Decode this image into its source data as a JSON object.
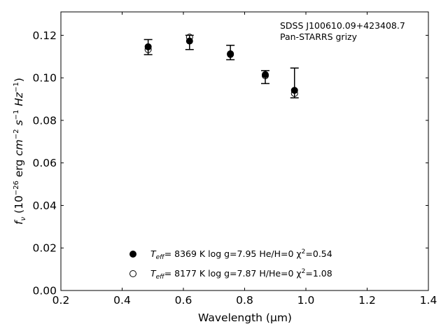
{
  "chart_data": {
    "type": "scatter",
    "xlabel": "Wavelength (μm)",
    "ylabel": "f_ν (10^-26 erg cm^-2 s^-1 Hz^-1)",
    "xlim": [
      0.2,
      1.4
    ],
    "ylim": [
      0.0,
      0.131
    ],
    "xticks": [
      0.2,
      0.4,
      0.6,
      0.8,
      1.0,
      1.2,
      1.4
    ],
    "xtick_labels": [
      "0.2",
      "0.4",
      "0.6",
      "0.8",
      "1.0",
      "1.2",
      "1.4"
    ],
    "yticks": [
      0.0,
      0.02,
      0.04,
      0.06,
      0.08,
      0.1,
      0.12
    ],
    "ytick_labels": [
      "0.00",
      "0.02",
      "0.04",
      "0.06",
      "0.08",
      "0.10",
      "0.12"
    ],
    "grid": false,
    "legend_position": "bottom-center",
    "annotation": [
      "SDSS J100610.09+423408.7",
      "Pan-STARRS grizy"
    ],
    "observed": {
      "x": [
        0.4849,
        0.6201,
        0.7535,
        0.8674,
        0.9628
      ],
      "y": [
        0.1143,
        0.1168,
        0.1115,
        0.1004,
        0.0976
      ],
      "yerr_low": [
        0.0034,
        0.0035,
        0.003,
        0.0031,
        0.007
      ],
      "yerr_high": [
        0.0037,
        0.0032,
        0.0038,
        0.003,
        0.007
      ]
    },
    "series": [
      {
        "name_parts": [
          "T",
          "eff",
          "=  8369 K  log g=7.95  He/H=0  χ",
          "2",
          "=0.54"
        ],
        "marker": "filled-circle",
        "x": [
          0.4849,
          0.6201,
          0.7535,
          0.8674,
          0.9628
        ],
        "y": [
          0.1146,
          0.1173,
          0.111,
          0.1015,
          0.0941
        ]
      },
      {
        "name_parts": [
          "T",
          "eff",
          "=  8177 K  log g=7.87  H/He=0  χ",
          "2",
          "=1.08"
        ],
        "marker": "open-circle",
        "x": [
          0.4849,
          0.6201,
          0.7535,
          0.8674,
          0.9628
        ],
        "y": [
          0.1133,
          0.1191,
          0.1113,
          0.101,
          0.0927
        ]
      }
    ]
  }
}
